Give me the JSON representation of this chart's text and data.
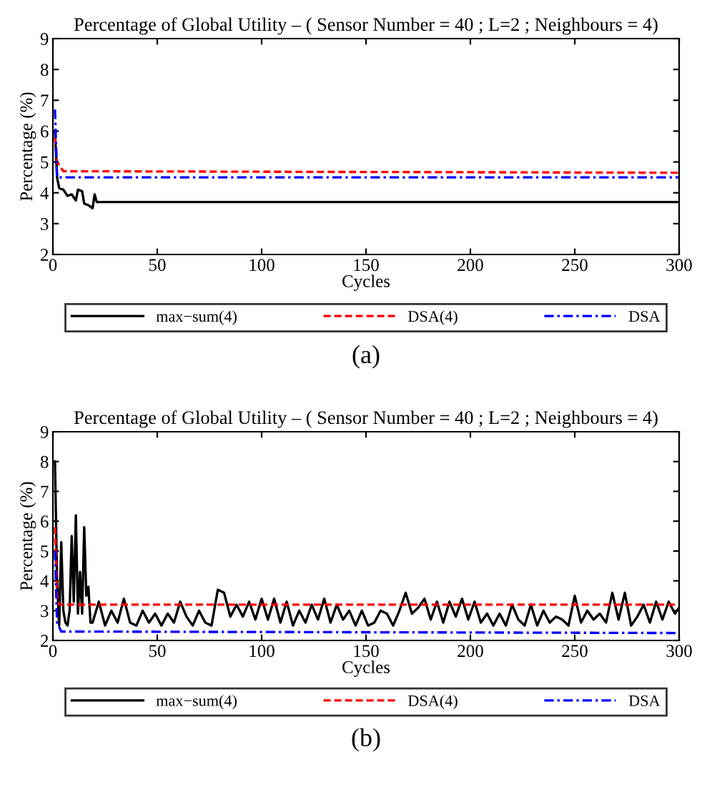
{
  "chart_data": [
    {
      "type": "line",
      "title": "Percentage of Global Utility – ( Sensor Number = 40 ; L=2 ; Neighbours = 4)",
      "xlabel": "Cycles",
      "ylabel": "Percentage (%)",
      "xlim": [
        0,
        300
      ],
      "xticks": [
        0,
        50,
        100,
        150,
        200,
        250,
        300
      ],
      "ylim": [
        2,
        9
      ],
      "yticks": [
        2,
        3,
        4,
        5,
        6,
        7,
        8,
        9
      ],
      "grid": false,
      "legend": "bottom",
      "annotations": [
        "(a)"
      ],
      "series": [
        {
          "name": "max−sum(4)",
          "color": "#000000",
          "line_style": "solid",
          "x": [
            1,
            2,
            3,
            5,
            7,
            9,
            11,
            12,
            14,
            15,
            17,
            19,
            20,
            21,
            300
          ],
          "values": [
            6.0,
            4.5,
            4.15,
            4.1,
            3.9,
            3.95,
            3.75,
            4.1,
            4.05,
            3.65,
            3.6,
            3.5,
            3.95,
            3.7,
            3.7
          ]
        },
        {
          "name": "DSA(4)",
          "color": "#ff0000",
          "line_style": "dashed",
          "x": [
            1,
            2,
            3,
            5,
            300
          ],
          "values": [
            5.8,
            5.0,
            4.9,
            4.7,
            4.65
          ]
        },
        {
          "name": "DSA",
          "color": "#0000ff",
          "line_style": "dashdot",
          "x": [
            1,
            2,
            300
          ],
          "values": [
            6.7,
            4.5,
            4.5
          ]
        }
      ]
    },
    {
      "type": "line",
      "title": "Percentage of Global Utility – ( Sensor Number = 40 ; L=2 ; Neighbours = 4)",
      "xlabel": "Cycles",
      "ylabel": "Percentage (%)",
      "xlim": [
        0,
        300
      ],
      "xticks": [
        0,
        50,
        100,
        150,
        200,
        250,
        300
      ],
      "ylim": [
        2,
        9
      ],
      "yticks": [
        2,
        3,
        4,
        5,
        6,
        7,
        8,
        9
      ],
      "grid": false,
      "legend": "bottom",
      "annotations": [
        "(b)"
      ],
      "series": [
        {
          "name": "max−sum(4)",
          "color": "#000000",
          "line_style": "solid",
          "x": [
            1,
            2,
            3,
            4,
            5,
            6,
            7,
            8,
            9,
            10,
            11,
            12,
            13,
            14,
            15,
            16,
            17,
            18,
            19,
            22,
            25,
            28,
            31,
            34,
            37,
            40,
            43,
            46,
            49,
            52,
            55,
            58,
            61,
            64,
            67,
            70,
            73,
            76,
            79,
            82,
            85,
            88,
            91,
            94,
            97,
            100,
            103,
            106,
            109,
            112,
            115,
            118,
            121,
            124,
            127,
            130,
            133,
            136,
            139,
            142,
            145,
            148,
            151,
            154,
            157,
            160,
            163,
            166,
            169,
            172,
            175,
            178,
            181,
            184,
            187,
            190,
            193,
            196,
            199,
            202,
            205,
            208,
            211,
            214,
            217,
            220,
            223,
            226,
            229,
            232,
            235,
            238,
            241,
            244,
            247,
            250,
            253,
            256,
            259,
            262,
            265,
            268,
            271,
            274,
            277,
            280,
            283,
            286,
            289,
            292,
            295,
            298,
            300
          ],
          "values": [
            8.0,
            4.0,
            2.5,
            5.3,
            3.0,
            2.6,
            2.5,
            3.0,
            5.5,
            3.3,
            6.2,
            2.9,
            4.3,
            2.9,
            5.8,
            3.5,
            3.8,
            2.6,
            2.6,
            3.3,
            2.5,
            3.0,
            2.6,
            3.4,
            2.6,
            2.5,
            3.0,
            2.6,
            2.9,
            2.5,
            2.9,
            2.6,
            3.3,
            2.8,
            2.5,
            3.0,
            2.6,
            2.5,
            3.7,
            3.6,
            2.8,
            3.2,
            2.8,
            3.3,
            2.7,
            3.4,
            2.7,
            3.4,
            2.6,
            3.3,
            2.5,
            3.0,
            2.6,
            3.2,
            2.7,
            3.4,
            2.6,
            3.2,
            2.7,
            3.0,
            2.5,
            3.0,
            2.5,
            2.6,
            3.0,
            2.9,
            2.5,
            3.0,
            3.6,
            2.9,
            3.1,
            3.4,
            2.7,
            3.3,
            2.6,
            3.3,
            2.8,
            3.4,
            2.7,
            3.3,
            2.6,
            2.9,
            2.5,
            2.9,
            2.5,
            3.2,
            2.7,
            2.5,
            3.2,
            2.5,
            3.0,
            2.6,
            2.8,
            2.7,
            2.5,
            3.5,
            2.6,
            3.0,
            2.7,
            2.9,
            2.6,
            3.6,
            2.7,
            3.6,
            2.5,
            2.8,
            3.2,
            2.6,
            3.3,
            2.7,
            3.3,
            2.9,
            3.1
          ]
        },
        {
          "name": "DSA(4)",
          "color": "#ff0000",
          "line_style": "dashed",
          "x": [
            1,
            2,
            3,
            300
          ],
          "values": [
            5.8,
            3.5,
            3.2,
            3.2
          ]
        },
        {
          "name": "DSA",
          "color": "#0000ff",
          "line_style": "dashdot",
          "x": [
            1,
            2,
            4,
            300
          ],
          "values": [
            5.0,
            2.6,
            2.3,
            2.25
          ]
        }
      ]
    }
  ]
}
